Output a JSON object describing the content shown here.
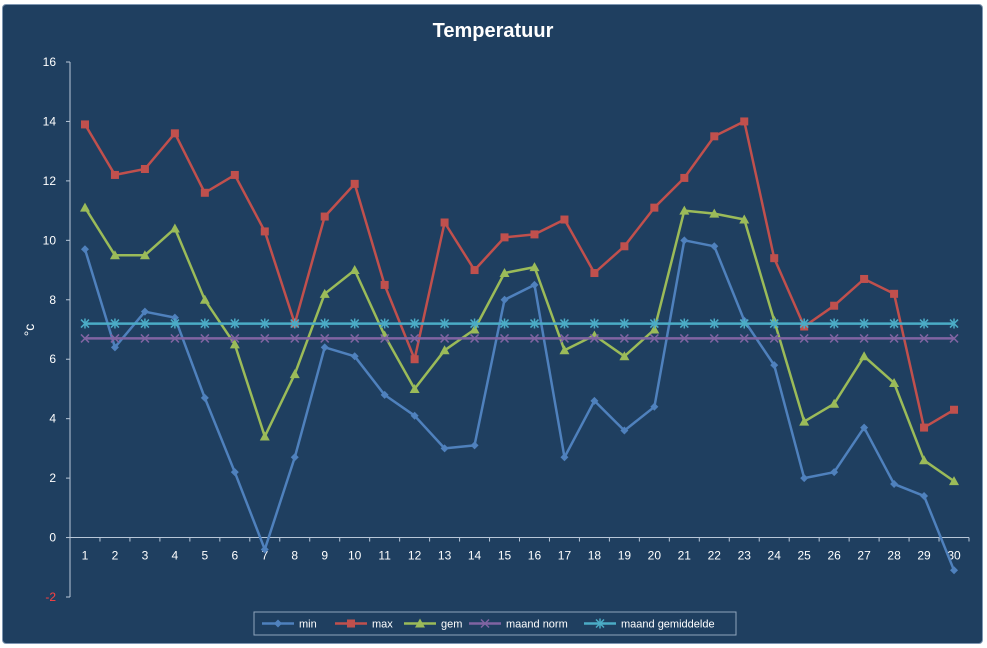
{
  "chart_data": {
    "type": "line",
    "title": "Temperatuur",
    "xlabel": "",
    "ylabel": "°c",
    "ylim": [
      -2,
      16
    ],
    "yticks": [
      -2,
      0,
      2,
      4,
      6,
      8,
      10,
      12,
      14,
      16
    ],
    "categories": [
      "1",
      "2",
      "3",
      "4",
      "5",
      "6",
      "7",
      "8",
      "9",
      "10",
      "11",
      "12",
      "13",
      "14",
      "15",
      "16",
      "17",
      "18",
      "19",
      "20",
      "21",
      "22",
      "23",
      "24",
      "25",
      "26",
      "27",
      "28",
      "29",
      "30"
    ],
    "grid": false,
    "legend_position": "bottom",
    "series": [
      {
        "name": "min",
        "color": "#4f81bd",
        "marker": "diamond",
        "values": [
          9.7,
          6.4,
          7.6,
          7.4,
          4.7,
          2.2,
          -0.4,
          2.7,
          6.4,
          6.1,
          4.8,
          4.1,
          3.0,
          3.1,
          8.0,
          8.5,
          2.7,
          4.6,
          3.6,
          4.4,
          10.0,
          9.8,
          7.3,
          5.8,
          2.0,
          2.2,
          3.7,
          1.8,
          1.4,
          -1.1
        ]
      },
      {
        "name": "max",
        "color": "#c0504d",
        "marker": "square",
        "values": [
          13.9,
          12.2,
          12.4,
          13.6,
          11.6,
          12.2,
          10.3,
          7.2,
          10.8,
          11.9,
          8.5,
          6.0,
          10.6,
          9.0,
          10.1,
          10.2,
          10.7,
          8.9,
          9.8,
          11.1,
          12.1,
          13.5,
          14.0,
          9.4,
          7.1,
          7.8,
          8.7,
          8.2,
          3.7,
          4.3
        ]
      },
      {
        "name": "gem",
        "color": "#9bbb59",
        "marker": "triangle",
        "values": [
          11.1,
          9.5,
          9.5,
          10.4,
          8.0,
          6.5,
          3.4,
          5.5,
          8.2,
          9.0,
          6.8,
          5.0,
          6.3,
          7.0,
          8.9,
          9.1,
          6.3,
          6.8,
          6.1,
          7.0,
          11.0,
          10.9,
          10.7,
          7.3,
          3.9,
          4.5,
          6.1,
          5.2,
          2.6,
          1.9
        ]
      },
      {
        "name": "maand norm",
        "color": "#8064a2",
        "marker": "x",
        "values": [
          6.7,
          6.7,
          6.7,
          6.7,
          6.7,
          6.7,
          6.7,
          6.7,
          6.7,
          6.7,
          6.7,
          6.7,
          6.7,
          6.7,
          6.7,
          6.7,
          6.7,
          6.7,
          6.7,
          6.7,
          6.7,
          6.7,
          6.7,
          6.7,
          6.7,
          6.7,
          6.7,
          6.7,
          6.7,
          6.7
        ]
      },
      {
        "name": "maand gemiddelde",
        "color": "#4bacc6",
        "marker": "asterisk",
        "values": [
          7.2,
          7.2,
          7.2,
          7.2,
          7.2,
          7.2,
          7.2,
          7.2,
          7.2,
          7.2,
          7.2,
          7.2,
          7.2,
          7.2,
          7.2,
          7.2,
          7.2,
          7.2,
          7.2,
          7.2,
          7.2,
          7.2,
          7.2,
          7.2,
          7.2,
          7.2,
          7.2,
          7.2,
          7.2,
          7.2
        ]
      }
    ]
  }
}
